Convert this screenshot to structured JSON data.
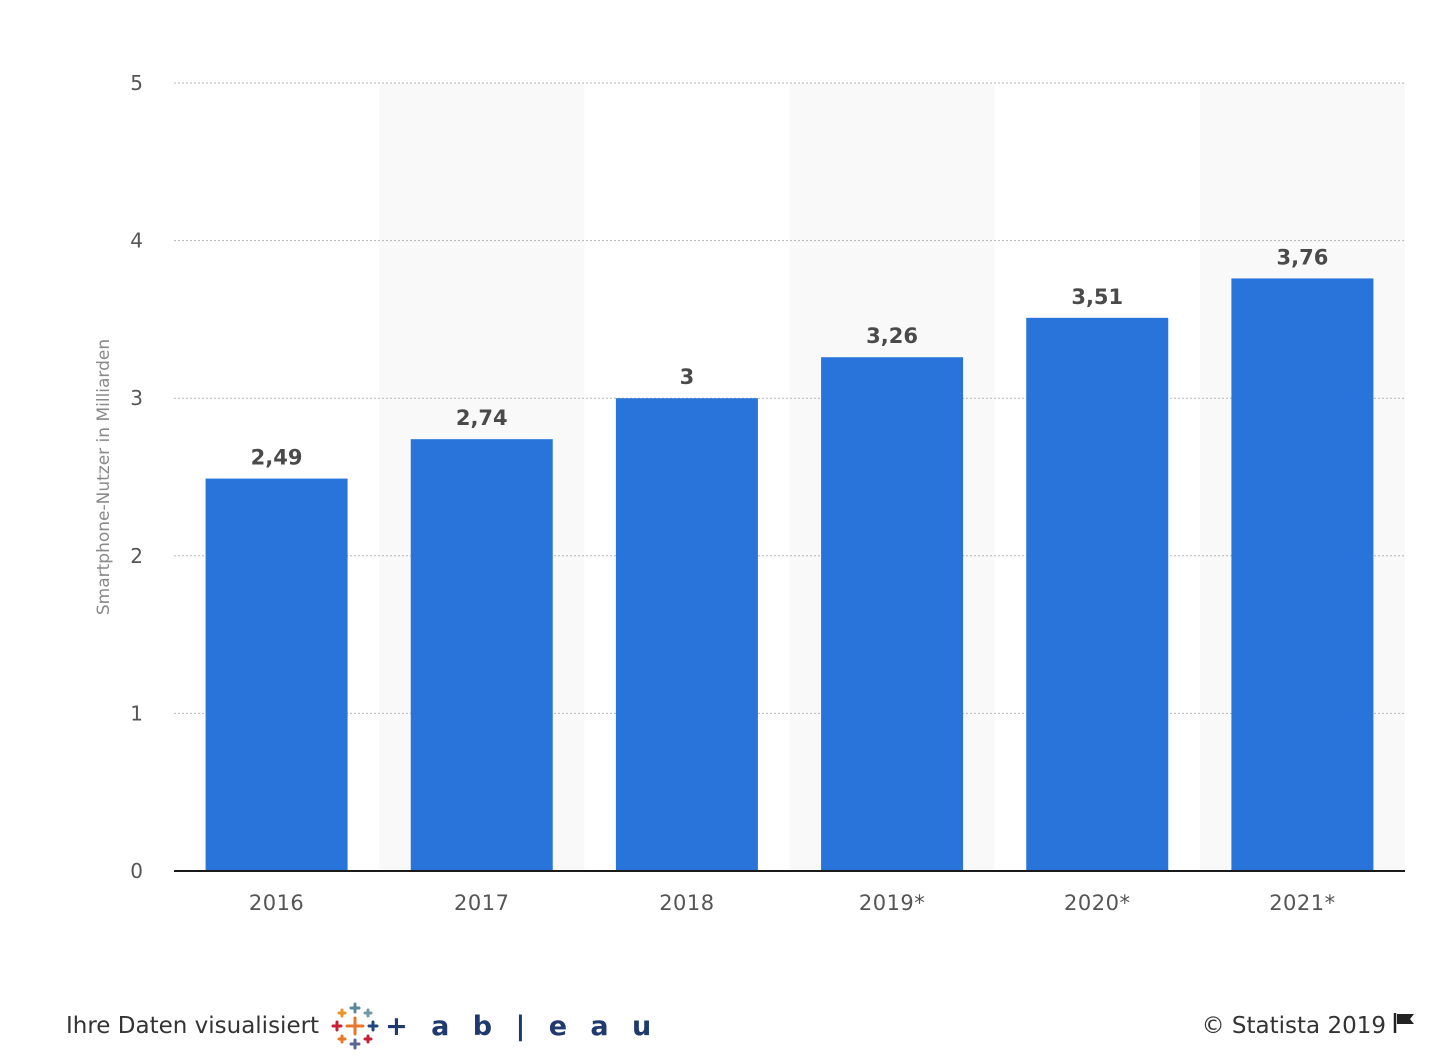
{
  "chart_data": {
    "type": "bar",
    "categories": [
      "2016",
      "2017",
      "2018",
      "2019*",
      "2020*",
      "2021*"
    ],
    "values": [
      2.49,
      2.74,
      3,
      3.26,
      3.51,
      3.76
    ],
    "data_labels": [
      "2,49",
      "2,74",
      "3",
      "3,26",
      "3,51",
      "3,76"
    ],
    "title": "",
    "xlabel": "",
    "ylabel": "Smartphone-Nutzer in Milliarden",
    "ylim": [
      0,
      5
    ],
    "yticks": [
      "0",
      "1",
      "2",
      "3",
      "4",
      "5"
    ],
    "grid": true,
    "legend": "none",
    "bar_color": "#2874db",
    "band_color": "#f9f9f9"
  },
  "footer": {
    "visualized_by": "Ihre Daten visualisiert",
    "tableau_brand": "+ a b | e a u",
    "copyright": "© Statista 2019"
  },
  "icons": {
    "tableau_logo": "tableau-cross-logo-icon",
    "flag": "flag-icon"
  }
}
